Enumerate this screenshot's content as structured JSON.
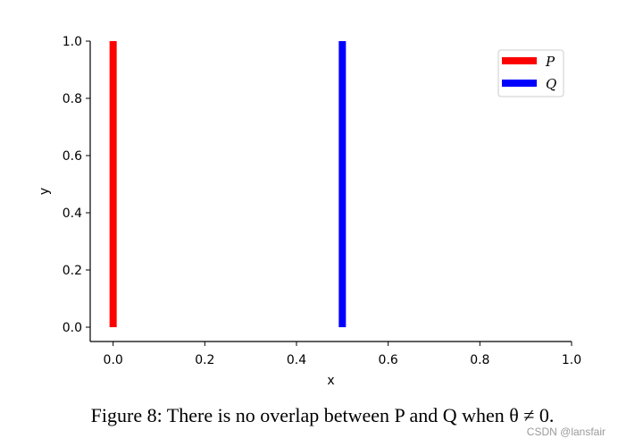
{
  "chart_data": {
    "type": "line",
    "xlabel": "x",
    "ylabel": "y",
    "xlim": [
      -0.05,
      1.0
    ],
    "ylim": [
      -0.05,
      1.0
    ],
    "xticks": [
      0.0,
      0.2,
      0.4,
      0.6,
      0.8,
      1.0
    ],
    "xtick_labels": [
      "0.0",
      "0.2",
      "0.4",
      "0.6",
      "0.8",
      "1.0"
    ],
    "yticks": [
      0.0,
      0.2,
      0.4,
      0.6,
      0.8,
      1.0
    ],
    "ytick_labels": [
      "0.0",
      "0.2",
      "0.4",
      "0.6",
      "0.8",
      "1.0"
    ],
    "grid": false,
    "legend_position": "top-right",
    "series": [
      {
        "name": "P",
        "color": "#ff0000",
        "x": [
          0.0,
          0.0
        ],
        "y": [
          0.0,
          1.0
        ]
      },
      {
        "name": "Q",
        "color": "#0000ff",
        "x": [
          0.5,
          0.5
        ],
        "y": [
          0.0,
          1.0
        ]
      }
    ]
  },
  "caption": {
    "text": "Figure 8: There is no overlap between P and Q when θ ≠ 0."
  },
  "watermark": {
    "text": "CSDN @lansfair"
  }
}
